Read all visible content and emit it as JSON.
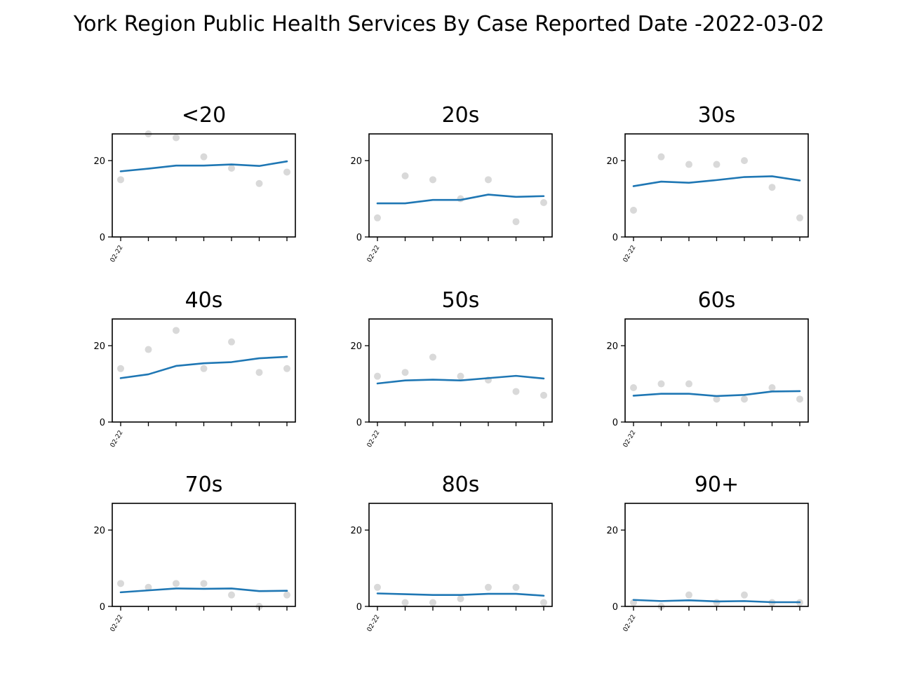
{
  "chart_data": {
    "type": "line",
    "title": "York Region Public Health Services By Case Reported Date -2022-03-02",
    "ylim": [
      0,
      27
    ],
    "yticks": [
      0,
      20
    ],
    "x_tick_label": "02-22",
    "x_count": 7,
    "grid": false,
    "colors": {
      "line": "#1f77b4",
      "points": "#d9d9d9",
      "axes": "#000000"
    },
    "panels": [
      {
        "title": "<20",
        "points": [
          15,
          27,
          26,
          21,
          18,
          14,
          17
        ],
        "trend": [
          17.2,
          17.9,
          18.7,
          18.7,
          19.0,
          18.6,
          19.8
        ]
      },
      {
        "title": "20s",
        "points": [
          5,
          16,
          15,
          10,
          15,
          4,
          9
        ],
        "trend": [
          8.8,
          8.8,
          9.7,
          9.7,
          11.1,
          10.5,
          10.7
        ]
      },
      {
        "title": "30s",
        "points": [
          7,
          21,
          19,
          19,
          20,
          13,
          5
        ],
        "trend": [
          13.3,
          14.5,
          14.2,
          14.9,
          15.7,
          15.9,
          14.8
        ]
      },
      {
        "title": "40s",
        "points": [
          14,
          19,
          24,
          14,
          21,
          13,
          14
        ],
        "trend": [
          11.5,
          12.5,
          14.7,
          15.4,
          15.7,
          16.7,
          17.1
        ]
      },
      {
        "title": "50s",
        "points": [
          12,
          13,
          17,
          12,
          11,
          8,
          7
        ],
        "trend": [
          10.1,
          10.9,
          11.1,
          10.9,
          11.5,
          12.1,
          11.4
        ]
      },
      {
        "title": "60s",
        "points": [
          9,
          10,
          10,
          6,
          6,
          9,
          6
        ],
        "trend": [
          6.9,
          7.4,
          7.4,
          6.8,
          7.1,
          8.0,
          8.1
        ]
      },
      {
        "title": "70s",
        "points": [
          6,
          5,
          6,
          6,
          3,
          0,
          3
        ],
        "trend": [
          3.7,
          4.2,
          4.7,
          4.6,
          4.7,
          4.0,
          4.1
        ]
      },
      {
        "title": "80s",
        "points": [
          5,
          1,
          1,
          2,
          5,
          5,
          1
        ],
        "trend": [
          3.4,
          3.2,
          3.0,
          3.0,
          3.3,
          3.3,
          2.8
        ]
      },
      {
        "title": "90+",
        "points": [
          1,
          0,
          3,
          1,
          3,
          1,
          1
        ],
        "trend": [
          1.7,
          1.4,
          1.6,
          1.3,
          1.4,
          1.1,
          1.1
        ]
      }
    ]
  }
}
